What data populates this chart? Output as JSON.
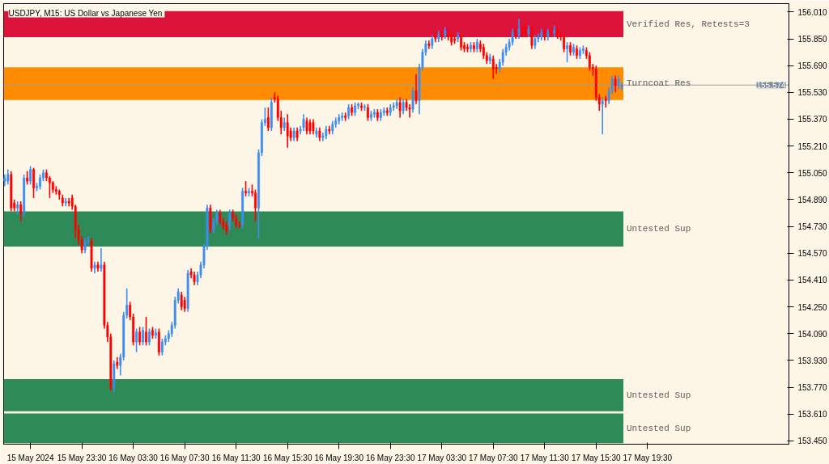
{
  "chart_data": {
    "type": "candlestick",
    "title": "USDJPY, M15:  US Dollar vs Japanese Yen",
    "x": [
      "2024-05-15T17:30",
      "2024-05-15T17:45",
      "2024-05-15T18:00",
      "2024-05-15T18:15",
      "2024-05-15T18:30",
      "2024-05-15T18:45",
      "2024-05-15T19:00",
      "2024-05-15T19:15",
      "2024-05-15T19:30",
      "2024-05-15T19:45",
      "2024-05-15T20:00",
      "2024-05-15T20:15",
      "2024-05-15T20:30",
      "2024-05-15T20:45",
      "2024-05-15T21:00",
      "2024-05-15T21:15",
      "2024-05-15T21:30",
      "2024-05-15T21:45",
      "2024-05-15T22:00",
      "2024-05-15T22:15",
      "2024-05-15T22:30",
      "2024-05-15T22:45",
      "2024-05-15T23:00",
      "2024-05-15T23:15",
      "2024-05-15T23:30",
      "2024-05-15T23:45",
      "2024-05-16T00:00",
      "2024-05-16T00:15",
      "2024-05-16T00:30",
      "2024-05-16T00:45",
      "2024-05-16T01:00",
      "2024-05-16T01:15",
      "2024-05-16T01:30",
      "2024-05-16T01:45",
      "2024-05-16T02:00",
      "2024-05-16T02:15",
      "2024-05-16T02:30",
      "2024-05-16T02:45",
      "2024-05-16T03:00",
      "2024-05-16T03:15",
      "2024-05-16T03:30",
      "2024-05-16T03:45",
      "2024-05-16T04:00",
      "2024-05-16T04:15",
      "2024-05-16T04:30",
      "2024-05-16T04:45",
      "2024-05-16T05:00",
      "2024-05-16T05:15",
      "2024-05-16T05:30",
      "2024-05-16T05:45",
      "2024-05-16T06:00",
      "2024-05-16T06:15",
      "2024-05-16T06:30",
      "2024-05-16T06:45",
      "2024-05-16T07:00",
      "2024-05-16T07:15",
      "2024-05-16T07:30",
      "2024-05-16T07:45",
      "2024-05-16T08:00",
      "2024-05-16T08:15",
      "2024-05-16T08:30",
      "2024-05-16T08:45",
      "2024-05-16T09:00",
      "2024-05-16T09:15",
      "2024-05-16T09:30",
      "2024-05-16T09:45",
      "2024-05-16T10:00",
      "2024-05-16T10:15",
      "2024-05-16T10:30",
      "2024-05-16T10:45",
      "2024-05-16T11:00",
      "2024-05-16T11:15",
      "2024-05-16T11:30",
      "2024-05-16T11:45",
      "2024-05-16T12:00",
      "2024-05-16T12:15",
      "2024-05-16T12:30",
      "2024-05-16T12:45",
      "2024-05-16T13:00",
      "2024-05-16T13:15",
      "2024-05-16T13:30",
      "2024-05-16T13:45",
      "2024-05-16T14:00",
      "2024-05-16T14:15",
      "2024-05-16T14:30",
      "2024-05-16T14:45",
      "2024-05-16T15:00",
      "2024-05-16T15:15",
      "2024-05-16T15:30",
      "2024-05-16T15:45",
      "2024-05-16T16:00",
      "2024-05-16T16:15",
      "2024-05-16T16:30",
      "2024-05-16T16:45",
      "2024-05-16T17:00",
      "2024-05-16T17:15",
      "2024-05-16T17:30",
      "2024-05-16T17:45",
      "2024-05-16T18:00",
      "2024-05-16T18:15",
      "2024-05-16T18:30",
      "2024-05-16T18:45",
      "2024-05-16T19:00",
      "2024-05-16T19:15",
      "2024-05-16T19:30",
      "2024-05-16T19:45",
      "2024-05-16T20:00",
      "2024-05-16T20:15",
      "2024-05-16T20:30",
      "2024-05-16T20:45",
      "2024-05-16T21:00",
      "2024-05-16T21:15",
      "2024-05-16T21:30",
      "2024-05-16T21:45",
      "2024-05-16T22:00",
      "2024-05-16T22:15",
      "2024-05-16T22:30",
      "2024-05-16T22:45",
      "2024-05-16T23:00",
      "2024-05-16T23:15",
      "2024-05-16T23:30",
      "2024-05-16T23:45",
      "2024-05-17T00:00",
      "2024-05-17T00:15",
      "2024-05-17T00:30",
      "2024-05-17T00:45",
      "2024-05-17T01:00",
      "2024-05-17T01:15",
      "2024-05-17T01:30",
      "2024-05-17T01:45",
      "2024-05-17T02:00",
      "2024-05-17T02:15",
      "2024-05-17T02:30",
      "2024-05-17T02:45",
      "2024-05-17T03:00",
      "2024-05-17T03:15",
      "2024-05-17T03:30",
      "2024-05-17T03:45",
      "2024-05-17T04:00",
      "2024-05-17T04:15",
      "2024-05-17T04:30",
      "2024-05-17T04:45",
      "2024-05-17T05:00",
      "2024-05-17T05:15",
      "2024-05-17T05:30",
      "2024-05-17T05:45",
      "2024-05-17T06:00",
      "2024-05-17T06:15",
      "2024-05-17T06:30",
      "2024-05-17T06:45",
      "2024-05-17T07:00",
      "2024-05-17T07:15",
      "2024-05-17T07:30",
      "2024-05-17T07:45",
      "2024-05-17T08:00",
      "2024-05-17T08:15",
      "2024-05-17T08:30",
      "2024-05-17T08:45",
      "2024-05-17T09:00",
      "2024-05-17T09:15",
      "2024-05-17T09:30",
      "2024-05-17T09:45",
      "2024-05-17T10:00",
      "2024-05-17T10:15",
      "2024-05-17T10:30",
      "2024-05-17T10:45",
      "2024-05-17T11:00",
      "2024-05-17T11:15",
      "2024-05-17T11:30",
      "2024-05-17T11:45",
      "2024-05-17T12:00",
      "2024-05-17T12:15",
      "2024-05-17T12:30",
      "2024-05-17T12:45",
      "2024-05-17T13:00",
      "2024-05-17T13:15",
      "2024-05-17T13:30",
      "2024-05-17T13:45",
      "2024-05-17T14:00",
      "2024-05-17T14:15",
      "2024-05-17T14:30",
      "2024-05-17T14:45",
      "2024-05-17T15:00",
      "2024-05-17T15:15",
      "2024-05-17T15:30",
      "2024-05-17T15:45",
      "2024-05-17T16:00",
      "2024-05-17T16:15",
      "2024-05-17T16:30",
      "2024-05-17T16:45",
      "2024-05-17T17:00",
      "2024-05-17T17:15",
      "2024-05-17T17:30"
    ],
    "ohlc": [
      [
        155.0,
        155.04,
        154.97,
        155.02
      ],
      [
        155.0,
        155.07,
        154.98,
        155.04
      ],
      [
        155.04,
        155.06,
        154.82,
        154.84
      ],
      [
        154.87,
        154.89,
        154.82,
        154.84
      ],
      [
        154.84,
        154.88,
        154.8,
        154.86
      ],
      [
        154.86,
        154.88,
        154.76,
        154.81
      ],
      [
        154.81,
        155.04,
        154.79,
        155.02
      ],
      [
        155.02,
        155.06,
        154.98,
        155.0
      ],
      [
        155.0,
        155.09,
        154.98,
        155.07
      ],
      [
        155.07,
        155.08,
        154.9,
        154.96
      ],
      [
        154.96,
        154.99,
        154.94,
        154.97
      ],
      [
        154.97,
        155.04,
        154.95,
        155.02
      ],
      [
        155.02,
        155.07,
        155.0,
        155.05
      ],
      [
        155.05,
        155.07,
        155.0,
        155.02
      ],
      [
        155.02,
        155.03,
        154.9,
        154.99
      ],
      [
        154.99,
        155.0,
        154.93,
        154.95
      ],
      [
        154.95,
        154.97,
        154.92,
        154.94
      ],
      [
        154.94,
        154.95,
        154.89,
        154.92
      ],
      [
        154.9,
        154.92,
        154.85,
        154.87
      ],
      [
        154.87,
        154.9,
        154.85,
        154.88
      ],
      [
        154.88,
        154.9,
        154.85,
        154.87
      ],
      [
        154.9,
        154.92,
        154.83,
        154.85
      ],
      [
        154.85,
        154.86,
        154.66,
        154.71
      ],
      [
        154.71,
        154.74,
        154.62,
        154.65
      ],
      [
        154.65,
        154.67,
        154.57,
        154.59
      ],
      [
        154.59,
        154.66,
        154.57,
        154.64
      ],
      [
        154.64,
        154.67,
        154.62,
        154.645
      ],
      [
        154.645,
        154.66,
        154.46,
        154.48
      ],
      [
        154.48,
        154.52,
        154.45,
        154.5
      ],
      [
        154.5,
        154.52,
        154.46,
        154.48
      ],
      [
        154.48,
        154.6,
        154.46,
        154.5
      ],
      [
        154.5,
        154.52,
        154.12,
        154.14
      ],
      [
        154.14,
        154.16,
        154.04,
        154.07
      ],
      [
        154.07,
        154.09,
        153.75,
        153.77
      ],
      [
        153.77,
        153.93,
        153.74,
        153.91
      ],
      [
        153.92,
        153.95,
        153.88,
        153.9
      ],
      [
        153.9,
        153.97,
        153.84,
        153.95
      ],
      [
        153.95,
        154.22,
        153.93,
        154.2
      ],
      [
        154.2,
        154.36,
        154.18,
        154.26
      ],
      [
        154.26,
        154.28,
        154.17,
        154.19
      ],
      [
        154.19,
        154.21,
        154.02,
        154.04
      ],
      [
        154.04,
        154.12,
        153.98,
        154.1
      ],
      [
        154.1,
        154.13,
        154.02,
        154.04
      ],
      [
        154.04,
        154.13,
        154.02,
        154.11
      ],
      [
        154.1,
        154.19,
        154.02,
        154.04
      ],
      [
        154.04,
        154.12,
        154.02,
        154.1
      ],
      [
        154.11,
        154.13,
        154.06,
        154.08
      ],
      [
        154.08,
        154.12,
        154.06,
        154.095
      ],
      [
        154.1,
        154.12,
        153.96,
        153.98
      ],
      [
        153.98,
        154.06,
        153.96,
        154.04
      ],
      [
        154.04,
        154.08,
        154.02,
        154.06
      ],
      [
        154.06,
        154.11,
        154.04,
        154.09
      ],
      [
        154.09,
        154.16,
        154.07,
        154.14
      ],
      [
        154.14,
        154.31,
        154.12,
        154.29
      ],
      [
        154.29,
        154.36,
        154.27,
        154.34
      ],
      [
        154.32,
        154.34,
        154.23,
        154.25
      ],
      [
        154.29,
        154.31,
        154.22,
        154.24
      ],
      [
        154.24,
        154.47,
        154.22,
        154.45
      ],
      [
        154.46,
        154.48,
        154.42,
        154.44
      ],
      [
        154.44,
        154.46,
        154.38,
        154.4
      ],
      [
        154.4,
        154.46,
        154.38,
        154.44
      ],
      [
        154.44,
        154.52,
        154.42,
        154.5
      ],
      [
        154.5,
        154.63,
        154.48,
        154.61
      ],
      [
        154.61,
        154.86,
        154.59,
        154.84
      ],
      [
        154.84,
        154.86,
        154.69,
        154.71
      ],
      [
        154.71,
        154.78,
        154.69,
        154.76
      ],
      [
        154.76,
        154.83,
        154.74,
        154.81
      ],
      [
        154.81,
        154.83,
        154.74,
        154.76
      ],
      [
        154.76,
        154.78,
        154.71,
        154.73
      ],
      [
        154.74,
        154.76,
        154.68,
        154.7
      ],
      [
        154.73,
        154.83,
        154.71,
        154.81
      ],
      [
        154.81,
        154.83,
        154.76,
        154.78
      ],
      [
        154.78,
        154.8,
        154.72,
        154.74
      ],
      [
        154.74,
        154.76,
        154.72,
        154.735
      ],
      [
        154.74,
        154.96,
        154.72,
        154.94
      ],
      [
        154.94,
        155.0,
        154.91,
        154.93
      ],
      [
        154.93,
        154.96,
        154.91,
        154.94
      ],
      [
        154.94,
        154.98,
        154.91,
        154.93
      ],
      [
        154.93,
        154.95,
        154.76,
        154.84
      ],
      [
        154.84,
        155.19,
        154.66,
        155.17
      ],
      [
        155.17,
        155.37,
        155.15,
        155.35
      ],
      [
        155.35,
        155.44,
        155.33,
        155.37
      ],
      [
        155.38,
        155.44,
        155.3,
        155.32
      ],
      [
        155.32,
        155.5,
        155.3,
        155.47
      ],
      [
        155.5,
        155.53,
        155.47,
        155.49
      ],
      [
        155.49,
        155.51,
        155.36,
        155.38
      ],
      [
        155.38,
        155.42,
        155.28,
        155.32
      ],
      [
        155.32,
        155.38,
        155.3,
        155.35
      ],
      [
        155.35,
        155.4,
        155.2,
        155.27
      ],
      [
        155.3,
        155.32,
        155.24,
        155.26
      ],
      [
        155.26,
        155.32,
        155.24,
        155.3
      ],
      [
        155.3,
        155.32,
        155.24,
        155.26
      ],
      [
        155.3,
        155.33,
        155.28,
        155.31
      ],
      [
        155.32,
        155.4,
        155.3,
        155.37
      ],
      [
        155.36,
        155.38,
        155.28,
        155.3
      ],
      [
        155.35,
        155.37,
        155.28,
        155.3
      ],
      [
        155.35,
        155.37,
        155.28,
        155.3
      ],
      [
        155.28,
        155.32,
        155.26,
        155.3
      ],
      [
        155.3,
        155.32,
        155.24,
        155.26
      ],
      [
        155.26,
        155.29,
        155.24,
        155.27
      ],
      [
        155.27,
        155.33,
        155.25,
        155.31
      ],
      [
        155.31,
        155.33,
        155.28,
        155.3
      ],
      [
        155.3,
        155.36,
        155.28,
        155.34
      ],
      [
        155.34,
        155.38,
        155.32,
        155.36
      ],
      [
        155.36,
        155.4,
        155.34,
        155.38
      ],
      [
        155.38,
        155.41,
        155.36,
        155.39
      ],
      [
        155.39,
        155.41,
        155.36,
        155.38
      ],
      [
        155.39,
        155.46,
        155.37,
        155.44
      ],
      [
        155.44,
        155.46,
        155.39,
        155.41
      ],
      [
        155.41,
        155.47,
        155.39,
        155.45
      ],
      [
        155.45,
        155.47,
        155.43,
        155.46
      ],
      [
        155.45,
        155.47,
        155.42,
        155.44
      ],
      [
        155.44,
        155.46,
        155.42,
        155.445
      ],
      [
        155.44,
        155.46,
        155.36,
        155.38
      ],
      [
        155.38,
        155.42,
        155.36,
        155.4
      ],
      [
        155.4,
        155.43,
        155.38,
        155.41
      ],
      [
        155.41,
        155.43,
        155.36,
        155.38
      ],
      [
        155.38,
        155.43,
        155.36,
        155.41
      ],
      [
        155.41,
        155.44,
        155.39,
        155.42
      ],
      [
        155.42,
        155.44,
        155.39,
        155.41
      ],
      [
        155.41,
        155.46,
        155.39,
        155.44
      ],
      [
        155.44,
        155.47,
        155.42,
        155.45
      ],
      [
        155.45,
        155.49,
        155.43,
        155.47
      ],
      [
        155.47,
        155.5,
        155.38,
        155.42
      ],
      [
        155.42,
        155.49,
        155.4,
        155.47
      ],
      [
        155.47,
        155.49,
        155.42,
        155.44
      ],
      [
        155.44,
        155.46,
        155.38,
        155.43
      ],
      [
        155.43,
        155.56,
        155.41,
        155.54
      ],
      [
        155.54,
        155.64,
        155.46,
        155.48
      ],
      [
        155.48,
        155.7,
        155.4,
        155.68
      ],
      [
        155.68,
        155.79,
        155.66,
        155.77
      ],
      [
        155.77,
        155.84,
        155.75,
        155.82
      ],
      [
        155.82,
        155.84,
        155.79,
        155.81
      ],
      [
        155.81,
        155.87,
        155.79,
        155.85
      ],
      [
        155.87,
        155.89,
        155.83,
        155.85
      ],
      [
        155.85,
        155.9,
        155.83,
        155.88
      ],
      [
        155.88,
        155.9,
        155.84,
        155.86
      ],
      [
        155.87,
        155.92,
        155.85,
        155.9
      ],
      [
        155.88,
        155.9,
        155.84,
        155.86
      ],
      [
        155.87,
        155.89,
        155.81,
        155.83
      ],
      [
        155.85,
        155.87,
        155.82,
        155.84
      ],
      [
        155.85,
        155.89,
        155.83,
        155.87
      ],
      [
        155.86,
        155.88,
        155.78,
        155.8
      ],
      [
        155.81,
        155.83,
        155.77,
        155.79
      ],
      [
        155.8,
        155.82,
        155.77,
        155.79
      ],
      [
        155.79,
        155.83,
        155.77,
        155.81
      ],
      [
        155.81,
        155.83,
        155.77,
        155.79
      ],
      [
        155.79,
        155.85,
        155.77,
        155.83
      ],
      [
        155.82,
        155.84,
        155.77,
        155.79
      ],
      [
        155.8,
        155.82,
        155.73,
        155.75
      ],
      [
        155.75,
        155.77,
        155.7,
        155.72
      ],
      [
        155.72,
        155.76,
        155.7,
        155.74
      ],
      [
        155.73,
        155.75,
        155.61,
        155.67
      ],
      [
        155.68,
        155.7,
        155.64,
        155.67
      ],
      [
        155.67,
        155.73,
        155.65,
        155.71
      ],
      [
        155.71,
        155.79,
        155.69,
        155.77
      ],
      [
        155.77,
        155.82,
        155.75,
        155.8
      ],
      [
        155.8,
        155.85,
        155.78,
        155.83
      ],
      [
        155.83,
        155.91,
        155.81,
        155.89
      ],
      [
        155.89,
        155.91,
        155.85,
        155.87
      ],
      [
        155.87,
        155.97,
        155.85,
        155.91
      ],
      [
        155.91,
        155.93,
        155.86,
        155.88
      ],
      [
        155.92,
        155.94,
        155.86,
        155.88
      ],
      [
        155.88,
        155.93,
        155.86,
        155.91
      ],
      [
        155.91,
        155.93,
        155.79,
        155.81
      ],
      [
        155.81,
        155.87,
        155.79,
        155.85
      ],
      [
        155.85,
        155.88,
        155.83,
        155.86
      ],
      [
        155.86,
        155.91,
        155.84,
        155.89
      ],
      [
        155.89,
        155.91,
        155.84,
        155.86
      ],
      [
        155.86,
        155.91,
        155.84,
        155.89
      ],
      [
        155.89,
        155.91,
        155.87,
        155.885
      ],
      [
        155.885,
        155.93,
        155.86,
        155.9
      ],
      [
        155.9,
        155.92,
        155.85,
        155.87
      ],
      [
        155.87,
        155.89,
        155.84,
        155.86
      ],
      [
        155.86,
        155.88,
        155.77,
        155.79
      ],
      [
        155.79,
        155.83,
        155.71,
        155.81
      ],
      [
        155.81,
        155.83,
        155.75,
        155.77
      ],
      [
        155.77,
        155.82,
        155.75,
        155.8
      ],
      [
        155.79,
        155.81,
        155.73,
        155.75
      ],
      [
        155.75,
        155.8,
        155.73,
        155.78
      ],
      [
        155.78,
        155.81,
        155.76,
        155.79
      ],
      [
        155.78,
        155.8,
        155.73,
        155.75
      ],
      [
        155.75,
        155.77,
        155.66,
        155.68
      ],
      [
        155.68,
        155.7,
        155.63,
        155.67
      ],
      [
        155.67,
        155.69,
        155.48,
        155.5
      ],
      [
        155.5,
        155.52,
        155.42,
        155.46
      ],
      [
        155.46,
        155.5,
        155.28,
        155.48
      ],
      [
        155.49,
        155.51,
        155.44,
        155.48
      ],
      [
        155.48,
        155.56,
        155.46,
        155.54
      ],
      [
        155.54,
        155.63,
        155.52,
        155.61
      ],
      [
        155.61,
        155.63,
        155.53,
        155.57
      ],
      [
        155.57,
        155.63,
        155.55,
        155.61
      ],
      [
        155.56,
        155.59,
        155.54,
        155.574
      ]
    ],
    "colors": [
      "#3d8ef0",
      "#3d8ef0",
      "#ff0000",
      "#ff0000",
      "#3d8ef0",
      "#ff0000",
      "#3d8ef0",
      "#ff0000",
      "#3d8ef0",
      "#ff0000",
      "#3d8ef0",
      "#3d8ef0",
      "#3d8ef0",
      "#ff0000",
      "#ff0000",
      "#ff0000",
      "#ff0000",
      "#ff0000",
      "#ff0000",
      "#3d8ef0",
      "#ff0000",
      "#ff0000",
      "#ff0000",
      "#ff0000",
      "#ff0000",
      "#3d8ef0",
      "#3d8ef0",
      "#ff0000",
      "#3d8ef0",
      "#ff0000",
      "#3d8ef0",
      "#ff0000",
      "#ff0000",
      "#ff0000",
      "#3d8ef0",
      "#ff0000",
      "#3d8ef0",
      "#3d8ef0",
      "#3d8ef0",
      "#ff0000",
      "#ff0000",
      "#3d8ef0",
      "#ff0000",
      "#3d8ef0",
      "#ff0000",
      "#3d8ef0",
      "#ff0000",
      "#3d8ef0",
      "#ff0000",
      "#3d8ef0",
      "#3d8ef0",
      "#3d8ef0",
      "#3d8ef0",
      "#3d8ef0",
      "#3d8ef0",
      "#ff0000",
      "#ff0000",
      "#3d8ef0",
      "#ff0000",
      "#ff0000",
      "#3d8ef0",
      "#3d8ef0",
      "#3d8ef0",
      "#3d8ef0",
      "#ff0000",
      "#3d8ef0",
      "#3d8ef0",
      "#ff0000",
      "#ff0000",
      "#ff0000",
      "#3d8ef0",
      "#ff0000",
      "#ff0000",
      "#ff0000",
      "#3d8ef0",
      "#ff0000",
      "#3d8ef0",
      "#ff0000",
      "#ff0000",
      "#3d8ef0",
      "#3d8ef0",
      "#3d8ef0",
      "#ff0000",
      "#3d8ef0",
      "#ff0000",
      "#ff0000",
      "#ff0000",
      "#3d8ef0",
      "#ff0000",
      "#ff0000",
      "#3d8ef0",
      "#ff0000",
      "#3d8ef0",
      "#3d8ef0",
      "#ff0000",
      "#ff0000",
      "#ff0000",
      "#3d8ef0",
      "#ff0000",
      "#3d8ef0",
      "#3d8ef0",
      "#ff0000",
      "#3d8ef0",
      "#3d8ef0",
      "#3d8ef0",
      "#3d8ef0",
      "#ff0000",
      "#3d8ef0",
      "#ff0000",
      "#3d8ef0",
      "#3d8ef0",
      "#ff0000",
      "#3d8ef0",
      "#ff0000",
      "#3d8ef0",
      "#3d8ef0",
      "#ff0000",
      "#3d8ef0",
      "#3d8ef0",
      "#ff0000",
      "#3d8ef0",
      "#3d8ef0",
      "#3d8ef0",
      "#ff0000",
      "#3d8ef0",
      "#ff0000",
      "#ff0000",
      "#3d8ef0",
      "#ff0000",
      "#3d8ef0",
      "#3d8ef0",
      "#3d8ef0",
      "#ff0000",
      "#3d8ef0",
      "#ff0000",
      "#3d8ef0",
      "#ff0000",
      "#3d8ef0",
      "#ff0000",
      "#ff0000",
      "#ff0000",
      "#3d8ef0",
      "#ff0000",
      "#ff0000",
      "#ff0000",
      "#3d8ef0",
      "#ff0000",
      "#3d8ef0",
      "#ff0000",
      "#ff0000",
      "#ff0000",
      "#3d8ef0",
      "#ff0000",
      "#ff0000",
      "#3d8ef0",
      "#3d8ef0",
      "#3d8ef0",
      "#3d8ef0",
      "#3d8ef0",
      "#ff0000",
      "#3d8ef0",
      "#ff0000",
      "#ff0000",
      "#3d8ef0",
      "#ff0000",
      "#3d8ef0",
      "#3d8ef0",
      "#3d8ef0",
      "#ff0000",
      "#3d8ef0",
      "#ff0000",
      "#3d8ef0",
      "#ff0000",
      "#ff0000",
      "#ff0000",
      "#3d8ef0",
      "#ff0000",
      "#3d8ef0",
      "#ff0000",
      "#3d8ef0",
      "#3d8ef0",
      "#ff0000",
      "#ff0000",
      "#ff0000",
      "#ff0000",
      "#ff0000",
      "#3d8ef0",
      "#ff0000",
      "#3d8ef0",
      "#3d8ef0",
      "#ff0000",
      "#3d8ef0",
      "#3d8ef0"
    ],
    "xlim": [
      "2024-05-15T17:25",
      "2024-05-18T06:30"
    ],
    "xticks": [
      {
        "value": "2024-05-15T19:30",
        "label": "15 May 2024"
      },
      {
        "value": "2024-05-15T23:30",
        "label": "15 May 23:30"
      },
      {
        "value": "2024-05-16T03:30",
        "label": "16 May 03:30"
      },
      {
        "value": "2024-05-16T07:30",
        "label": "16 May 07:30"
      },
      {
        "value": "2024-05-16T11:30",
        "label": "16 May 11:30"
      },
      {
        "value": "2024-05-16T15:30",
        "label": "16 May 15:30"
      },
      {
        "value": "2024-05-16T19:30",
        "label": "16 May 19:30"
      },
      {
        "value": "2024-05-16T23:30",
        "label": "16 May 23:30"
      },
      {
        "value": "2024-05-17T03:30",
        "label": "17 May 03:30"
      },
      {
        "value": "2024-05-17T07:30",
        "label": "17 May 07:30"
      },
      {
        "value": "2024-05-17T11:30",
        "label": "17 May 11:30"
      },
      {
        "value": "2024-05-17T15:30",
        "label": "17 May 15:30"
      },
      {
        "value": "2024-05-17T19:30",
        "label": "17 May 19:30"
      }
    ],
    "ylim": [
      153.43,
      156.06
    ],
    "yticks": [
      {
        "value": 153.45,
        "label": "153.450"
      },
      {
        "value": 153.61,
        "label": "153.610"
      },
      {
        "value": 153.77,
        "label": "153.770"
      },
      {
        "value": 153.93,
        "label": "153.930"
      },
      {
        "value": 154.09,
        "label": "154.090"
      },
      {
        "value": 154.25,
        "label": "154.250"
      },
      {
        "value": 154.41,
        "label": "154.410"
      },
      {
        "value": 154.57,
        "label": "154.570"
      },
      {
        "value": 154.73,
        "label": "154.730"
      },
      {
        "value": 154.89,
        "label": "154.890"
      },
      {
        "value": 155.05,
        "label": "155.050"
      },
      {
        "value": 155.21,
        "label": "155.210"
      },
      {
        "value": 155.37,
        "label": "155.370"
      },
      {
        "value": 155.53,
        "label": "155.530"
      },
      {
        "value": 155.69,
        "label": "155.690"
      },
      {
        "value": 155.85,
        "label": "155.850"
      },
      {
        "value": 156.01,
        "label": "156.010"
      }
    ],
    "bands": [
      {
        "axis": "y",
        "from": 155.86,
        "to": 156.015,
        "label": "Verified Res, Retests=3",
        "color": "#dc143c"
      },
      {
        "axis": "y",
        "from": 155.485,
        "to": 155.68,
        "label": "Turncoat Res",
        "color": "#ff8c00"
      },
      {
        "axis": "y",
        "from": 154.61,
        "to": 154.82,
        "label": "Untested Sup",
        "color": "#2e8b57"
      },
      {
        "axis": "y",
        "from": 153.627,
        "to": 153.818,
        "label": "Untested Sup",
        "color": "#2e8b57"
      },
      {
        "axis": "y",
        "from": 153.436,
        "to": 153.613,
        "label": "Untested Sup",
        "color": "#2e8b57"
      }
    ],
    "ref_lines": [
      {
        "axis": "y",
        "value": 155.574,
        "label": "155.574",
        "color": "#a0a0a0"
      }
    ],
    "grid": false
  }
}
